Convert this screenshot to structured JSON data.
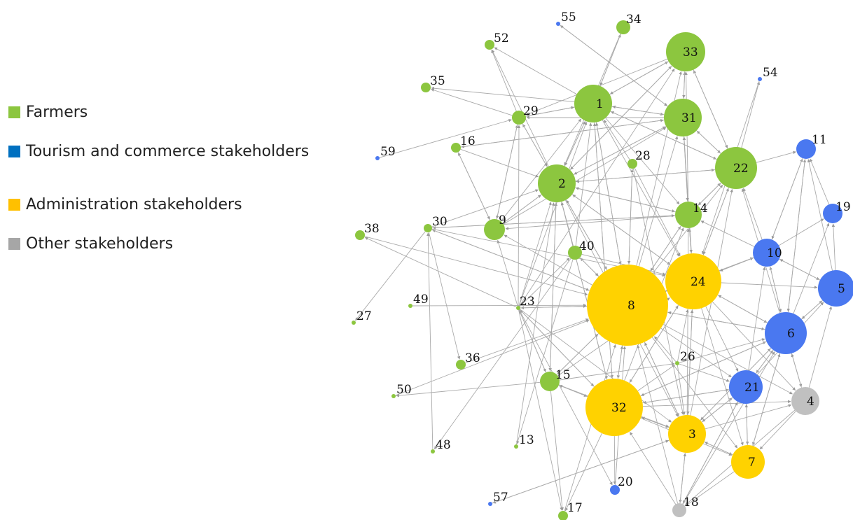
{
  "legend": [
    {
      "label": "Farmers",
      "color": "#8cc63f"
    },
    {
      "label": "Tourism and commerce stakeholders",
      "color": "#0070c0"
    },
    {
      "label": "Administration stakeholders",
      "color": "#ffc000"
    },
    {
      "label": "Other stakeholders",
      "color": "#a6a6a6"
    }
  ],
  "node_colors": {
    "farmer": "#8cc63f",
    "tourism": "#4a78f0",
    "admin": "#ffd200",
    "other": "#c0c0c0"
  },
  "edge_color": "#aaaaaa",
  "nodes": [
    {
      "id": "1",
      "group": "farmer"
    },
    {
      "id": "2",
      "group": "farmer"
    },
    {
      "id": "3",
      "group": "admin"
    },
    {
      "id": "4",
      "group": "other"
    },
    {
      "id": "5",
      "group": "tourism"
    },
    {
      "id": "6",
      "group": "tourism"
    },
    {
      "id": "7",
      "group": "admin"
    },
    {
      "id": "8",
      "group": "admin"
    },
    {
      "id": "9",
      "group": "farmer"
    },
    {
      "id": "10",
      "group": "tourism"
    },
    {
      "id": "11",
      "group": "tourism"
    },
    {
      "id": "13",
      "group": "farmer"
    },
    {
      "id": "14",
      "group": "farmer"
    },
    {
      "id": "15",
      "group": "farmer"
    },
    {
      "id": "16",
      "group": "farmer"
    },
    {
      "id": "17",
      "group": "farmer"
    },
    {
      "id": "18",
      "group": "other"
    },
    {
      "id": "19",
      "group": "tourism"
    },
    {
      "id": "20",
      "group": "tourism"
    },
    {
      "id": "21",
      "group": "tourism"
    },
    {
      "id": "22",
      "group": "farmer"
    },
    {
      "id": "23",
      "group": "farmer"
    },
    {
      "id": "24",
      "group": "admin"
    },
    {
      "id": "26",
      "group": "farmer"
    },
    {
      "id": "27",
      "group": "farmer"
    },
    {
      "id": "28",
      "group": "farmer"
    },
    {
      "id": "29",
      "group": "farmer"
    },
    {
      "id": "30",
      "group": "farmer"
    },
    {
      "id": "31",
      "group": "farmer"
    },
    {
      "id": "32",
      "group": "admin"
    },
    {
      "id": "33",
      "group": "farmer"
    },
    {
      "id": "34",
      "group": "farmer"
    },
    {
      "id": "35",
      "group": "farmer"
    },
    {
      "id": "36",
      "group": "farmer"
    },
    {
      "id": "38",
      "group": "farmer"
    },
    {
      "id": "40",
      "group": "farmer"
    },
    {
      "id": "48",
      "group": "farmer"
    },
    {
      "id": "49",
      "group": "farmer"
    },
    {
      "id": "50",
      "group": "farmer"
    },
    {
      "id": "52",
      "group": "farmer"
    },
    {
      "id": "54",
      "group": "tourism"
    },
    {
      "id": "55",
      "group": "tourism"
    },
    {
      "id": "57",
      "group": "tourism"
    },
    {
      "id": "59",
      "group": "tourism"
    }
  ],
  "edges": [
    [
      "1",
      "33"
    ],
    [
      "1",
      "31"
    ],
    [
      "1",
      "22"
    ],
    [
      "1",
      "14"
    ],
    [
      "1",
      "2"
    ],
    [
      "1",
      "29"
    ],
    [
      "1",
      "35"
    ],
    [
      "1",
      "52"
    ],
    [
      "1",
      "34"
    ],
    [
      "1",
      "8"
    ],
    [
      "1",
      "32"
    ],
    [
      "1",
      "24"
    ],
    [
      "2",
      "33"
    ],
    [
      "2",
      "31"
    ],
    [
      "2",
      "1"
    ],
    [
      "2",
      "22"
    ],
    [
      "2",
      "9"
    ],
    [
      "2",
      "8"
    ],
    [
      "2",
      "32"
    ],
    [
      "2",
      "15"
    ],
    [
      "2",
      "52"
    ],
    [
      "2",
      "29"
    ],
    [
      "2",
      "24"
    ],
    [
      "2",
      "14"
    ],
    [
      "2",
      "3"
    ],
    [
      "8",
      "2"
    ],
    [
      "8",
      "1"
    ],
    [
      "8",
      "9"
    ],
    [
      "8",
      "30"
    ],
    [
      "8",
      "24"
    ],
    [
      "8",
      "3"
    ],
    [
      "8",
      "6"
    ],
    [
      "8",
      "32"
    ],
    [
      "8",
      "22"
    ],
    [
      "8",
      "14"
    ],
    [
      "8",
      "31"
    ],
    [
      "8",
      "33"
    ],
    [
      "8",
      "10"
    ],
    [
      "8",
      "23"
    ],
    [
      "8",
      "15"
    ],
    [
      "8",
      "21"
    ],
    [
      "8",
      "4"
    ],
    [
      "8",
      "7"
    ],
    [
      "8",
      "40"
    ],
    [
      "8",
      "28"
    ],
    [
      "24",
      "8"
    ],
    [
      "24",
      "10"
    ],
    [
      "24",
      "5"
    ],
    [
      "24",
      "6"
    ],
    [
      "24",
      "3"
    ],
    [
      "24",
      "32"
    ],
    [
      "24",
      "14"
    ],
    [
      "24",
      "22"
    ],
    [
      "24",
      "31"
    ],
    [
      "24",
      "21"
    ],
    [
      "24",
      "7"
    ],
    [
      "24",
      "2"
    ],
    [
      "24",
      "4"
    ],
    [
      "32",
      "8"
    ],
    [
      "32",
      "24"
    ],
    [
      "32",
      "3"
    ],
    [
      "32",
      "6"
    ],
    [
      "32",
      "21"
    ],
    [
      "32",
      "4"
    ],
    [
      "32",
      "7"
    ],
    [
      "32",
      "2"
    ],
    [
      "32",
      "15"
    ],
    [
      "32",
      "23"
    ],
    [
      "32",
      "1"
    ],
    [
      "32",
      "20"
    ],
    [
      "32",
      "17"
    ],
    [
      "32",
      "14"
    ],
    [
      "32",
      "26"
    ],
    [
      "3",
      "8"
    ],
    [
      "3",
      "24"
    ],
    [
      "3",
      "32"
    ],
    [
      "3",
      "21"
    ],
    [
      "3",
      "6"
    ],
    [
      "3",
      "4"
    ],
    [
      "3",
      "7"
    ],
    [
      "3",
      "14"
    ],
    [
      "3",
      "22"
    ],
    [
      "3",
      "18"
    ],
    [
      "3",
      "57"
    ],
    [
      "6",
      "5"
    ],
    [
      "6",
      "10"
    ],
    [
      "6",
      "19"
    ],
    [
      "6",
      "11"
    ],
    [
      "6",
      "21"
    ],
    [
      "6",
      "4"
    ],
    [
      "6",
      "7"
    ],
    [
      "6",
      "3"
    ],
    [
      "6",
      "8"
    ],
    [
      "6",
      "24"
    ],
    [
      "6",
      "32"
    ],
    [
      "6",
      "22"
    ],
    [
      "21",
      "6"
    ],
    [
      "21",
      "5"
    ],
    [
      "21",
      "3"
    ],
    [
      "21",
      "7"
    ],
    [
      "21",
      "18"
    ],
    [
      "21",
      "32"
    ],
    [
      "21",
      "10"
    ],
    [
      "10",
      "11"
    ],
    [
      "10",
      "19"
    ],
    [
      "10",
      "5"
    ],
    [
      "10",
      "6"
    ],
    [
      "10",
      "22"
    ],
    [
      "10",
      "24"
    ],
    [
      "10",
      "14"
    ],
    [
      "5",
      "19"
    ],
    [
      "5",
      "11"
    ],
    [
      "5",
      "10"
    ],
    [
      "5",
      "6"
    ],
    [
      "19",
      "11"
    ],
    [
      "22",
      "11"
    ],
    [
      "4",
      "7"
    ],
    [
      "4",
      "6"
    ],
    [
      "4",
      "18"
    ],
    [
      "4",
      "5"
    ],
    [
      "7",
      "18"
    ],
    [
      "7",
      "3"
    ],
    [
      "7",
      "6"
    ],
    [
      "7",
      "21"
    ],
    [
      "18",
      "3"
    ],
    [
      "18",
      "21"
    ],
    [
      "18",
      "6"
    ],
    [
      "18",
      "32"
    ],
    [
      "18",
      "8"
    ],
    [
      "14",
      "31"
    ],
    [
      "14",
      "22"
    ],
    [
      "14",
      "8"
    ],
    [
      "14",
      "24"
    ],
    [
      "14",
      "2"
    ],
    [
      "14",
      "9"
    ],
    [
      "14",
      "30"
    ],
    [
      "14",
      "33"
    ],
    [
      "31",
      "33"
    ],
    [
      "31",
      "1"
    ],
    [
      "31",
      "22"
    ],
    [
      "31",
      "2"
    ],
    [
      "31",
      "14"
    ],
    [
      "31",
      "29"
    ],
    [
      "31",
      "16"
    ],
    [
      "31",
      "55"
    ],
    [
      "22",
      "33"
    ],
    [
      "22",
      "31"
    ],
    [
      "22",
      "14"
    ],
    [
      "22",
      "24"
    ],
    [
      "22",
      "2"
    ],
    [
      "22",
      "54"
    ],
    [
      "22",
      "1"
    ],
    [
      "33",
      "1"
    ],
    [
      "33",
      "2"
    ],
    [
      "33",
      "29"
    ],
    [
      "33",
      "31"
    ],
    [
      "33",
      "22"
    ],
    [
      "9",
      "2"
    ],
    [
      "9",
      "16"
    ],
    [
      "9",
      "29"
    ],
    [
      "9",
      "1"
    ],
    [
      "9",
      "31"
    ],
    [
      "29",
      "35"
    ],
    [
      "29",
      "52"
    ],
    [
      "29",
      "1"
    ],
    [
      "29",
      "2"
    ],
    [
      "29",
      "9"
    ],
    [
      "15",
      "23"
    ],
    [
      "15",
      "2"
    ],
    [
      "15",
      "8"
    ],
    [
      "15",
      "32"
    ],
    [
      "15",
      "24"
    ],
    [
      "15",
      "3"
    ],
    [
      "15",
      "26"
    ],
    [
      "15",
      "50"
    ],
    [
      "15",
      "17"
    ],
    [
      "23",
      "2"
    ],
    [
      "23",
      "1"
    ],
    [
      "23",
      "29"
    ],
    [
      "23",
      "8"
    ],
    [
      "23",
      "15"
    ],
    [
      "23",
      "9"
    ],
    [
      "23",
      "32"
    ],
    [
      "23",
      "40"
    ],
    [
      "23",
      "38"
    ],
    [
      "23",
      "33"
    ],
    [
      "23",
      "17"
    ],
    [
      "23",
      "20"
    ],
    [
      "23",
      "3"
    ],
    [
      "30",
      "27"
    ],
    [
      "30",
      "2"
    ],
    [
      "30",
      "14"
    ],
    [
      "30",
      "8"
    ],
    [
      "30",
      "36"
    ],
    [
      "30",
      "24"
    ],
    [
      "40",
      "2"
    ],
    [
      "40",
      "1"
    ],
    [
      "40",
      "8"
    ],
    [
      "40",
      "24"
    ],
    [
      "40",
      "48"
    ],
    [
      "40",
      "13"
    ],
    [
      "28",
      "8"
    ],
    [
      "28",
      "3"
    ],
    [
      "28",
      "24"
    ],
    [
      "28",
      "1"
    ],
    [
      "26",
      "24"
    ],
    [
      "26",
      "8"
    ],
    [
      "26",
      "6"
    ],
    [
      "26",
      "3"
    ],
    [
      "26",
      "21"
    ],
    [
      "16",
      "9"
    ],
    [
      "16",
      "2"
    ],
    [
      "16",
      "31"
    ],
    [
      "59",
      "29"
    ],
    [
      "38",
      "8"
    ],
    [
      "49",
      "8"
    ],
    [
      "36",
      "8"
    ],
    [
      "50",
      "8"
    ],
    [
      "13",
      "2"
    ],
    [
      "48",
      "30"
    ],
    [
      "34",
      "2"
    ],
    [
      "34",
      "1"
    ],
    [
      "55",
      "31"
    ],
    [
      "54",
      "24"
    ],
    [
      "20",
      "8"
    ],
    [
      "17",
      "8"
    ],
    [
      "57",
      "3"
    ],
    [
      "11",
      "6"
    ],
    [
      "11",
      "10"
    ]
  ]
}
